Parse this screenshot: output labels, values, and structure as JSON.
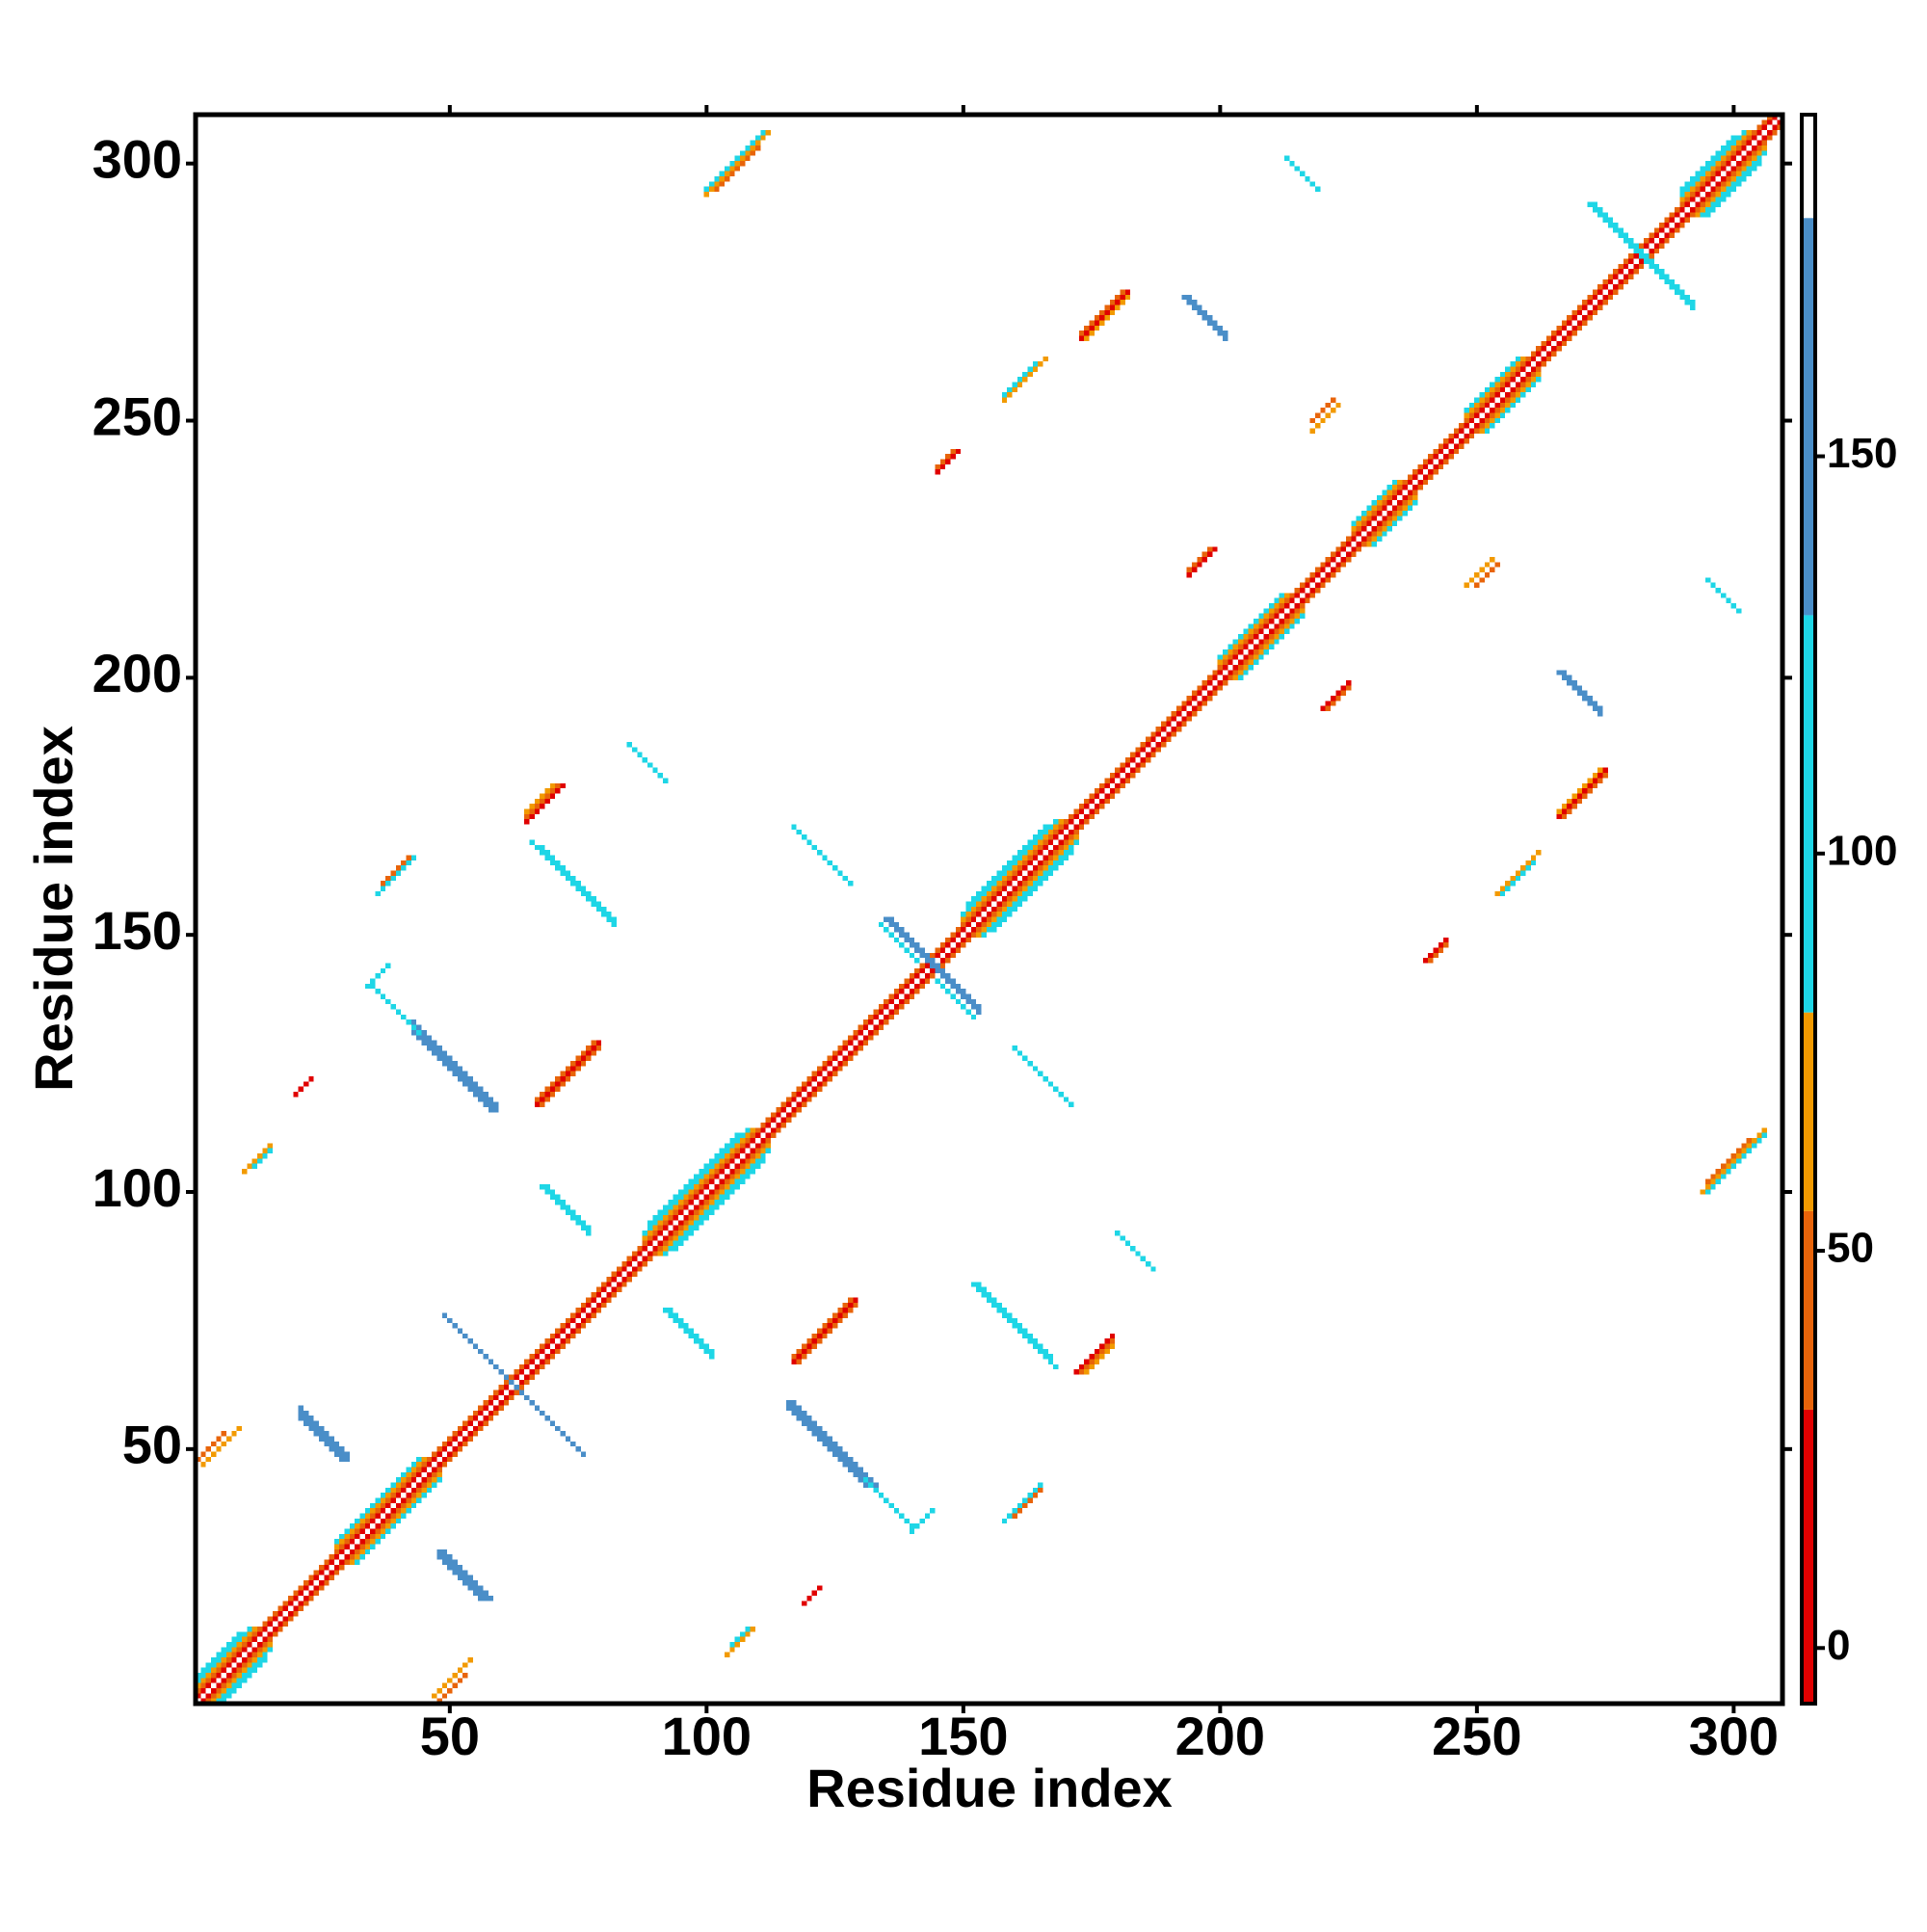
{
  "chart_data": {
    "type": "heatmap",
    "x_label": "Residue index",
    "y_label": "Residue index",
    "xlim": [
      0.5,
      309.5
    ],
    "ylim": [
      0.5,
      309.5
    ],
    "xticks": [
      50,
      100,
      150,
      200,
      250,
      300
    ],
    "yticks": [
      50,
      100,
      150,
      200,
      250,
      300
    ],
    "symmetric": true,
    "parallel": [
      [
        1,
        1,
        309,
        190
      ],
      [
        2,
        1,
        308,
        5
      ],
      [
        3,
        1,
        307,
        40
      ],
      [
        4,
        1,
        12,
        65
      ],
      [
        31,
        28,
        18,
        65
      ],
      [
        91,
        88,
        22,
        65
      ],
      [
        153,
        150,
        20,
        65
      ],
      [
        203,
        200,
        14,
        65
      ],
      [
        229,
        226,
        10,
        65
      ],
      [
        251,
        248,
        12,
        65
      ],
      [
        293,
        290,
        14,
        65
      ],
      [
        5,
        1,
        11,
        100
      ],
      [
        32,
        28,
        17,
        100
      ],
      [
        92,
        88,
        21,
        100
      ],
      [
        154,
        150,
        19,
        100
      ],
      [
        204,
        200,
        13,
        100
      ],
      [
        230,
        226,
        9,
        100
      ],
      [
        252,
        248,
        11,
        100
      ],
      [
        294,
        290,
        13,
        100
      ],
      [
        6,
        1,
        9,
        105
      ],
      [
        94,
        89,
        18,
        105
      ],
      [
        156,
        151,
        16,
        105
      ],
      [
        295,
        290,
        11,
        105
      ],
      [
        117,
        67,
        13,
        10
      ],
      [
        118,
        67,
        12,
        45
      ],
      [
        117,
        68,
        12,
        50
      ],
      [
        172,
        65,
        8,
        10
      ],
      [
        173,
        65,
        7,
        45
      ],
      [
        174,
        65,
        6,
        60
      ],
      [
        220,
        194,
        6,
        15
      ],
      [
        221,
        194,
        5,
        45
      ],
      [
        240,
        145,
        5,
        15
      ],
      [
        241,
        145,
        4,
        50
      ],
      [
        266,
        173,
        10,
        12
      ],
      [
        267,
        173,
        9,
        45
      ],
      [
        266,
        174,
        9,
        55
      ],
      [
        254,
        158,
        9,
        55
      ],
      [
        255,
        158,
        7,
        100
      ],
      [
        294,
        100,
        13,
        55
      ],
      [
        295,
        100,
        12,
        100
      ],
      [
        295,
        102,
        9,
        45
      ],
      [
        248,
        218,
        6,
        55
      ],
      [
        250,
        218,
        5,
        45
      ],
      [
        104,
        10,
        6,
        55
      ],
      [
        105,
        12,
        4,
        100
      ],
      [
        47,
        2,
        8,
        55
      ],
      [
        48,
        1,
        6,
        45
      ],
      [
        119,
        20,
        4,
        10
      ],
      [
        158,
        36,
        8,
        105
      ],
      [
        160,
        37,
        6,
        50
      ],
      [
        140,
        34,
        5,
        100
      ]
    ],
    "antiparallel": [
      [
        48,
        30,
        10,
        170
      ],
      [
        49,
        30,
        10,
        170
      ],
      [
        48,
        29,
        9,
        170
      ],
      [
        116,
        59,
        17,
        170
      ],
      [
        117,
        59,
        17,
        170
      ],
      [
        116,
        58,
        16,
        170
      ],
      [
        131,
        44,
        10,
        100
      ],
      [
        152,
        82,
        17,
        100
      ],
      [
        153,
        82,
        15,
        100
      ],
      [
        92,
        77,
        10,
        100
      ],
      [
        93,
        77,
        9,
        100
      ],
      [
        135,
        153,
        18,
        170
      ],
      [
        136,
        153,
        17,
        170
      ],
      [
        134,
        152,
        8,
        100
      ],
      [
        49,
        76,
        26,
        160
      ],
      [
        160,
        128,
        12,
        110
      ],
      [
        266,
        201,
        9,
        170
      ],
      [
        267,
        201,
        8,
        170
      ],
      [
        272,
        292,
        21,
        110
      ],
      [
        273,
        292,
        19,
        110
      ],
      [
        295,
        219,
        7,
        110
      ],
      [
        180,
        92,
        8,
        120
      ]
    ],
    "colorbar": {
      "bins": [
        -7,
        30,
        55,
        80,
        130,
        180,
        193
      ],
      "colors": [
        "#e00000",
        "#e8640a",
        "#f29a00",
        "#1ed6e6",
        "#4a8ec8",
        "#ffffff"
      ],
      "ylim": [
        -7,
        193
      ],
      "yticks": [
        0,
        50,
        100,
        150
      ]
    }
  }
}
